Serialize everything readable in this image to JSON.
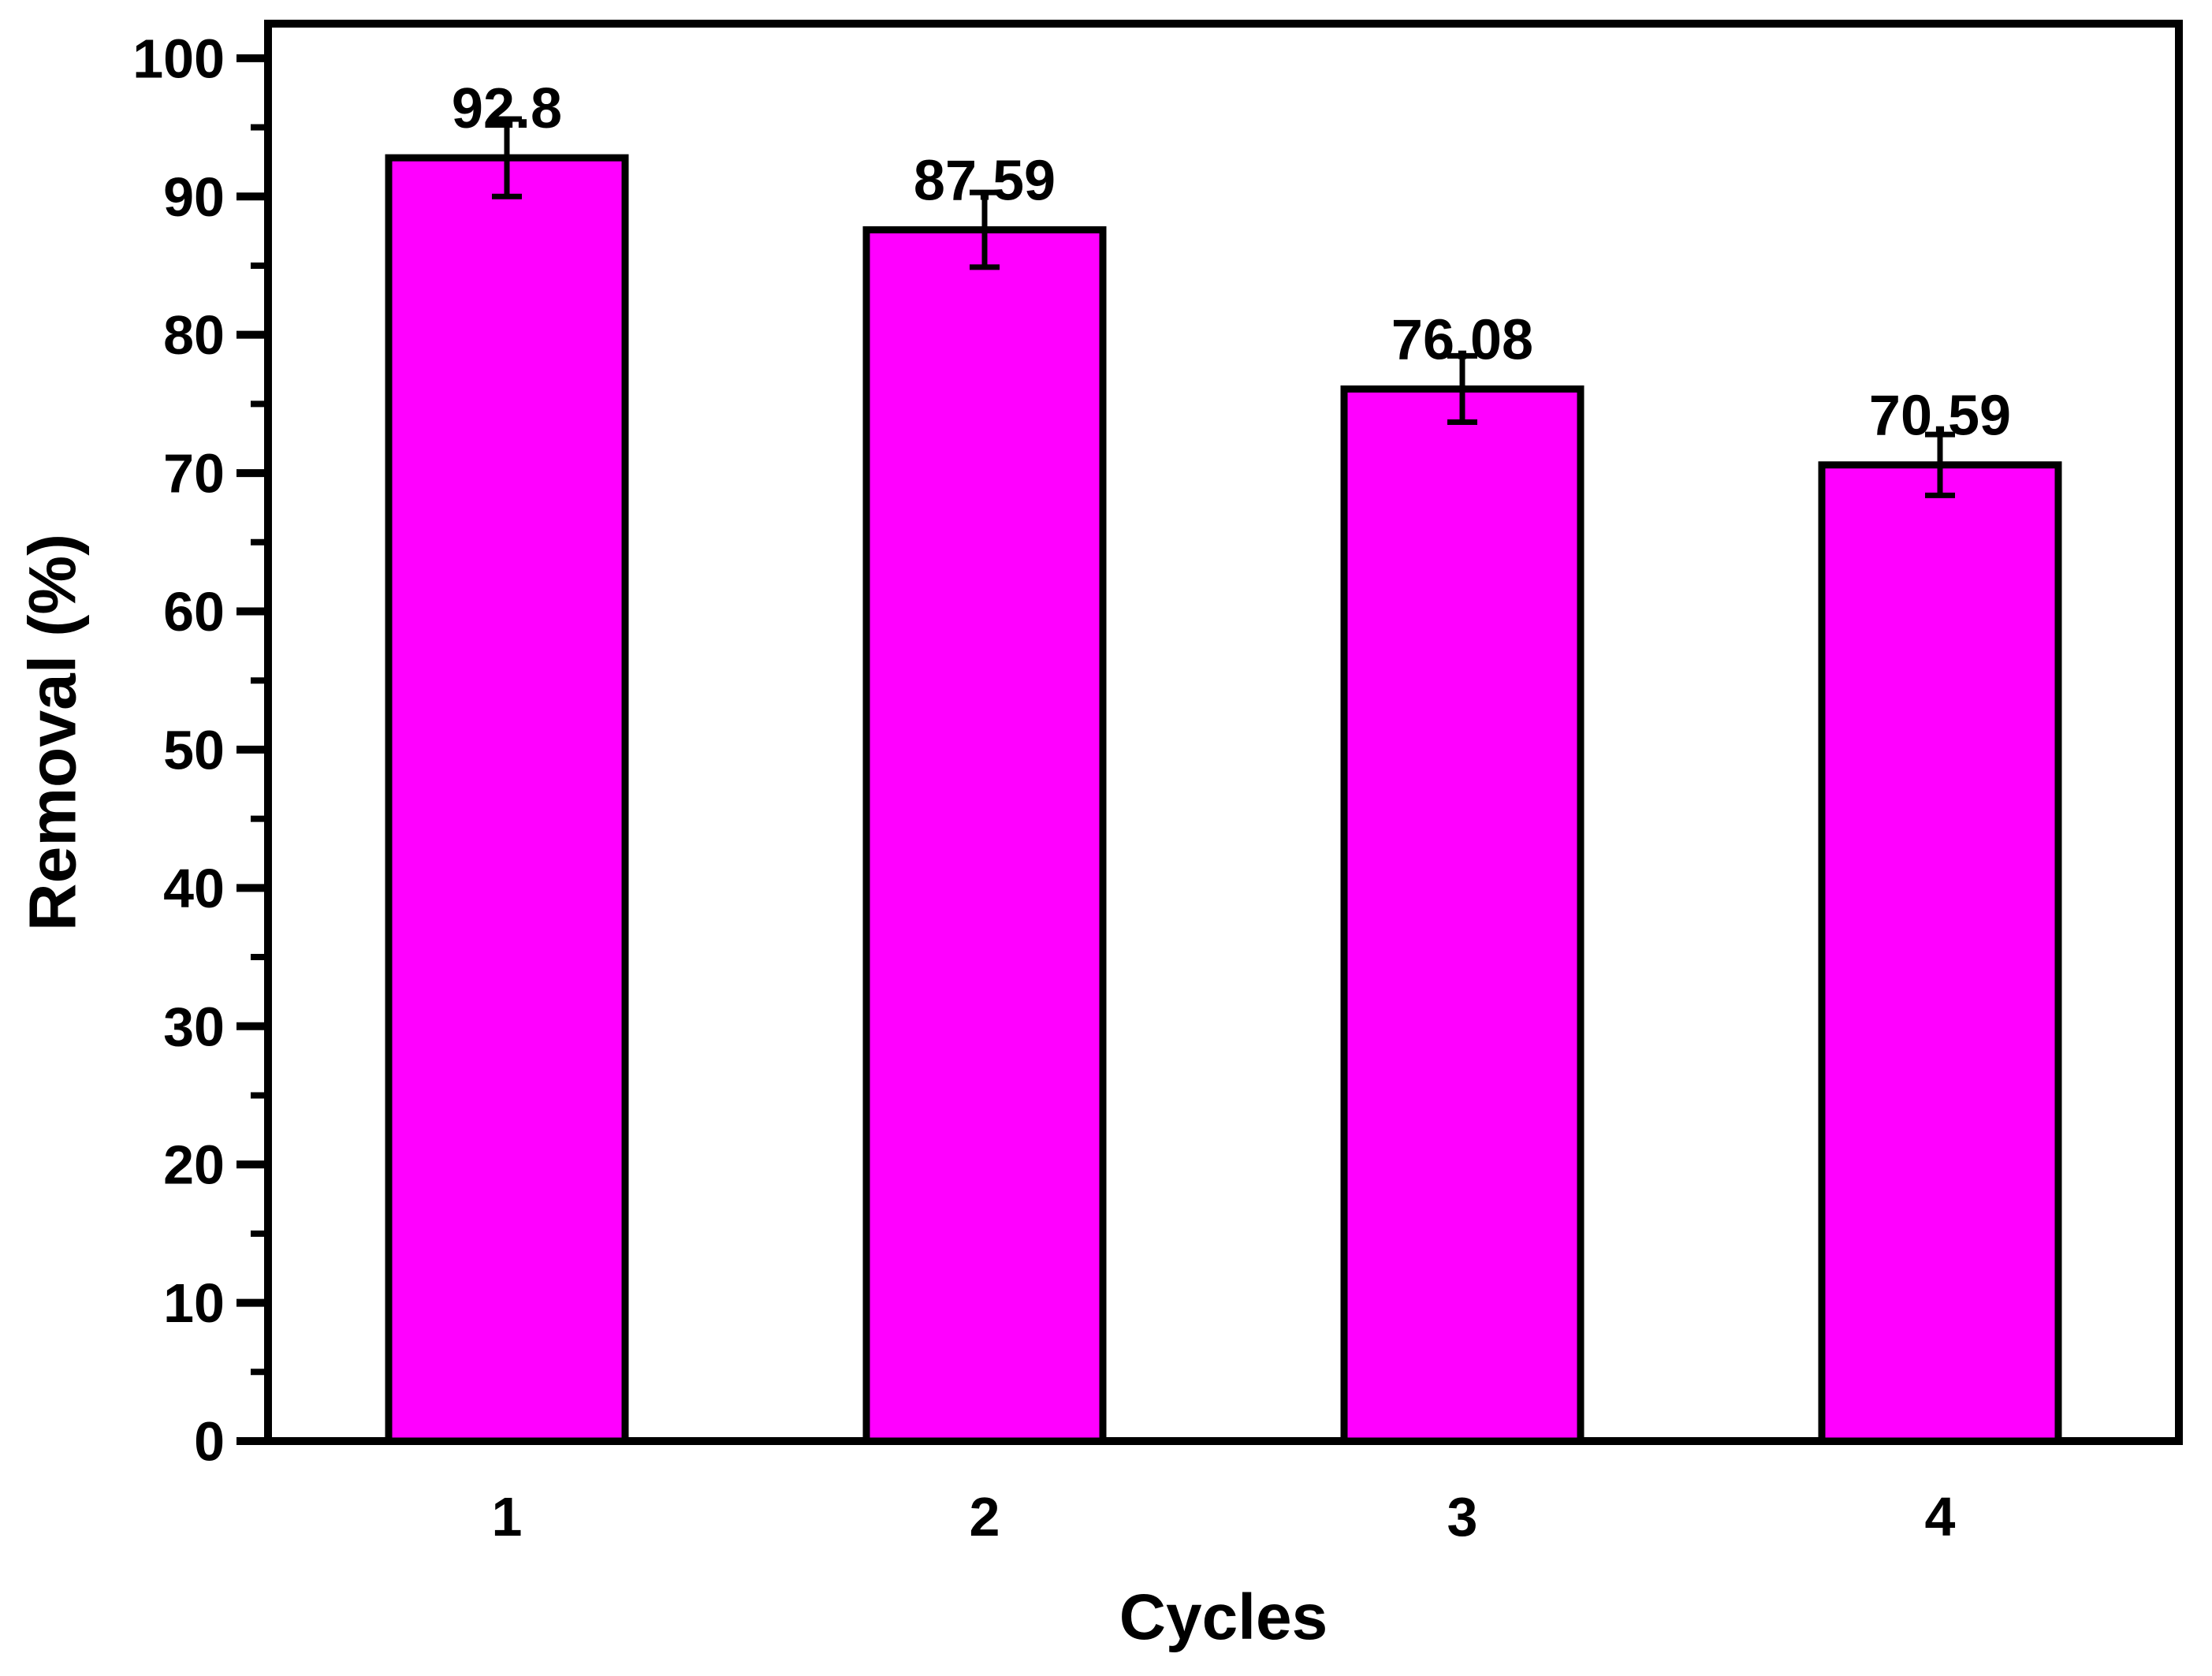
{
  "chart_data": {
    "type": "bar",
    "title": "",
    "xlabel": "Cycles",
    "ylabel": "Removal (%)",
    "categories": [
      "1",
      "2",
      "3",
      "4"
    ],
    "values": [
      92.8,
      87.59,
      76.08,
      70.59
    ],
    "errors": [
      2.8,
      2.7,
      2.4,
      2.2
    ],
    "bar_labels": [
      "92.8",
      "87.59",
      "76.08",
      "70.59"
    ],
    "ylim": [
      0,
      102.5
    ],
    "y_major_step": 10,
    "y_minor_step": 5,
    "y_tick_labels": [
      "0",
      "10",
      "20",
      "30",
      "40",
      "50",
      "60",
      "70",
      "80",
      "90",
      "100"
    ],
    "grid": false,
    "legend": null,
    "colors": {
      "bar_fill": "#FF00FF",
      "bar_edge": "#000000",
      "axis": "#000000",
      "text": "#000000",
      "background": "#FFFFFF"
    }
  }
}
